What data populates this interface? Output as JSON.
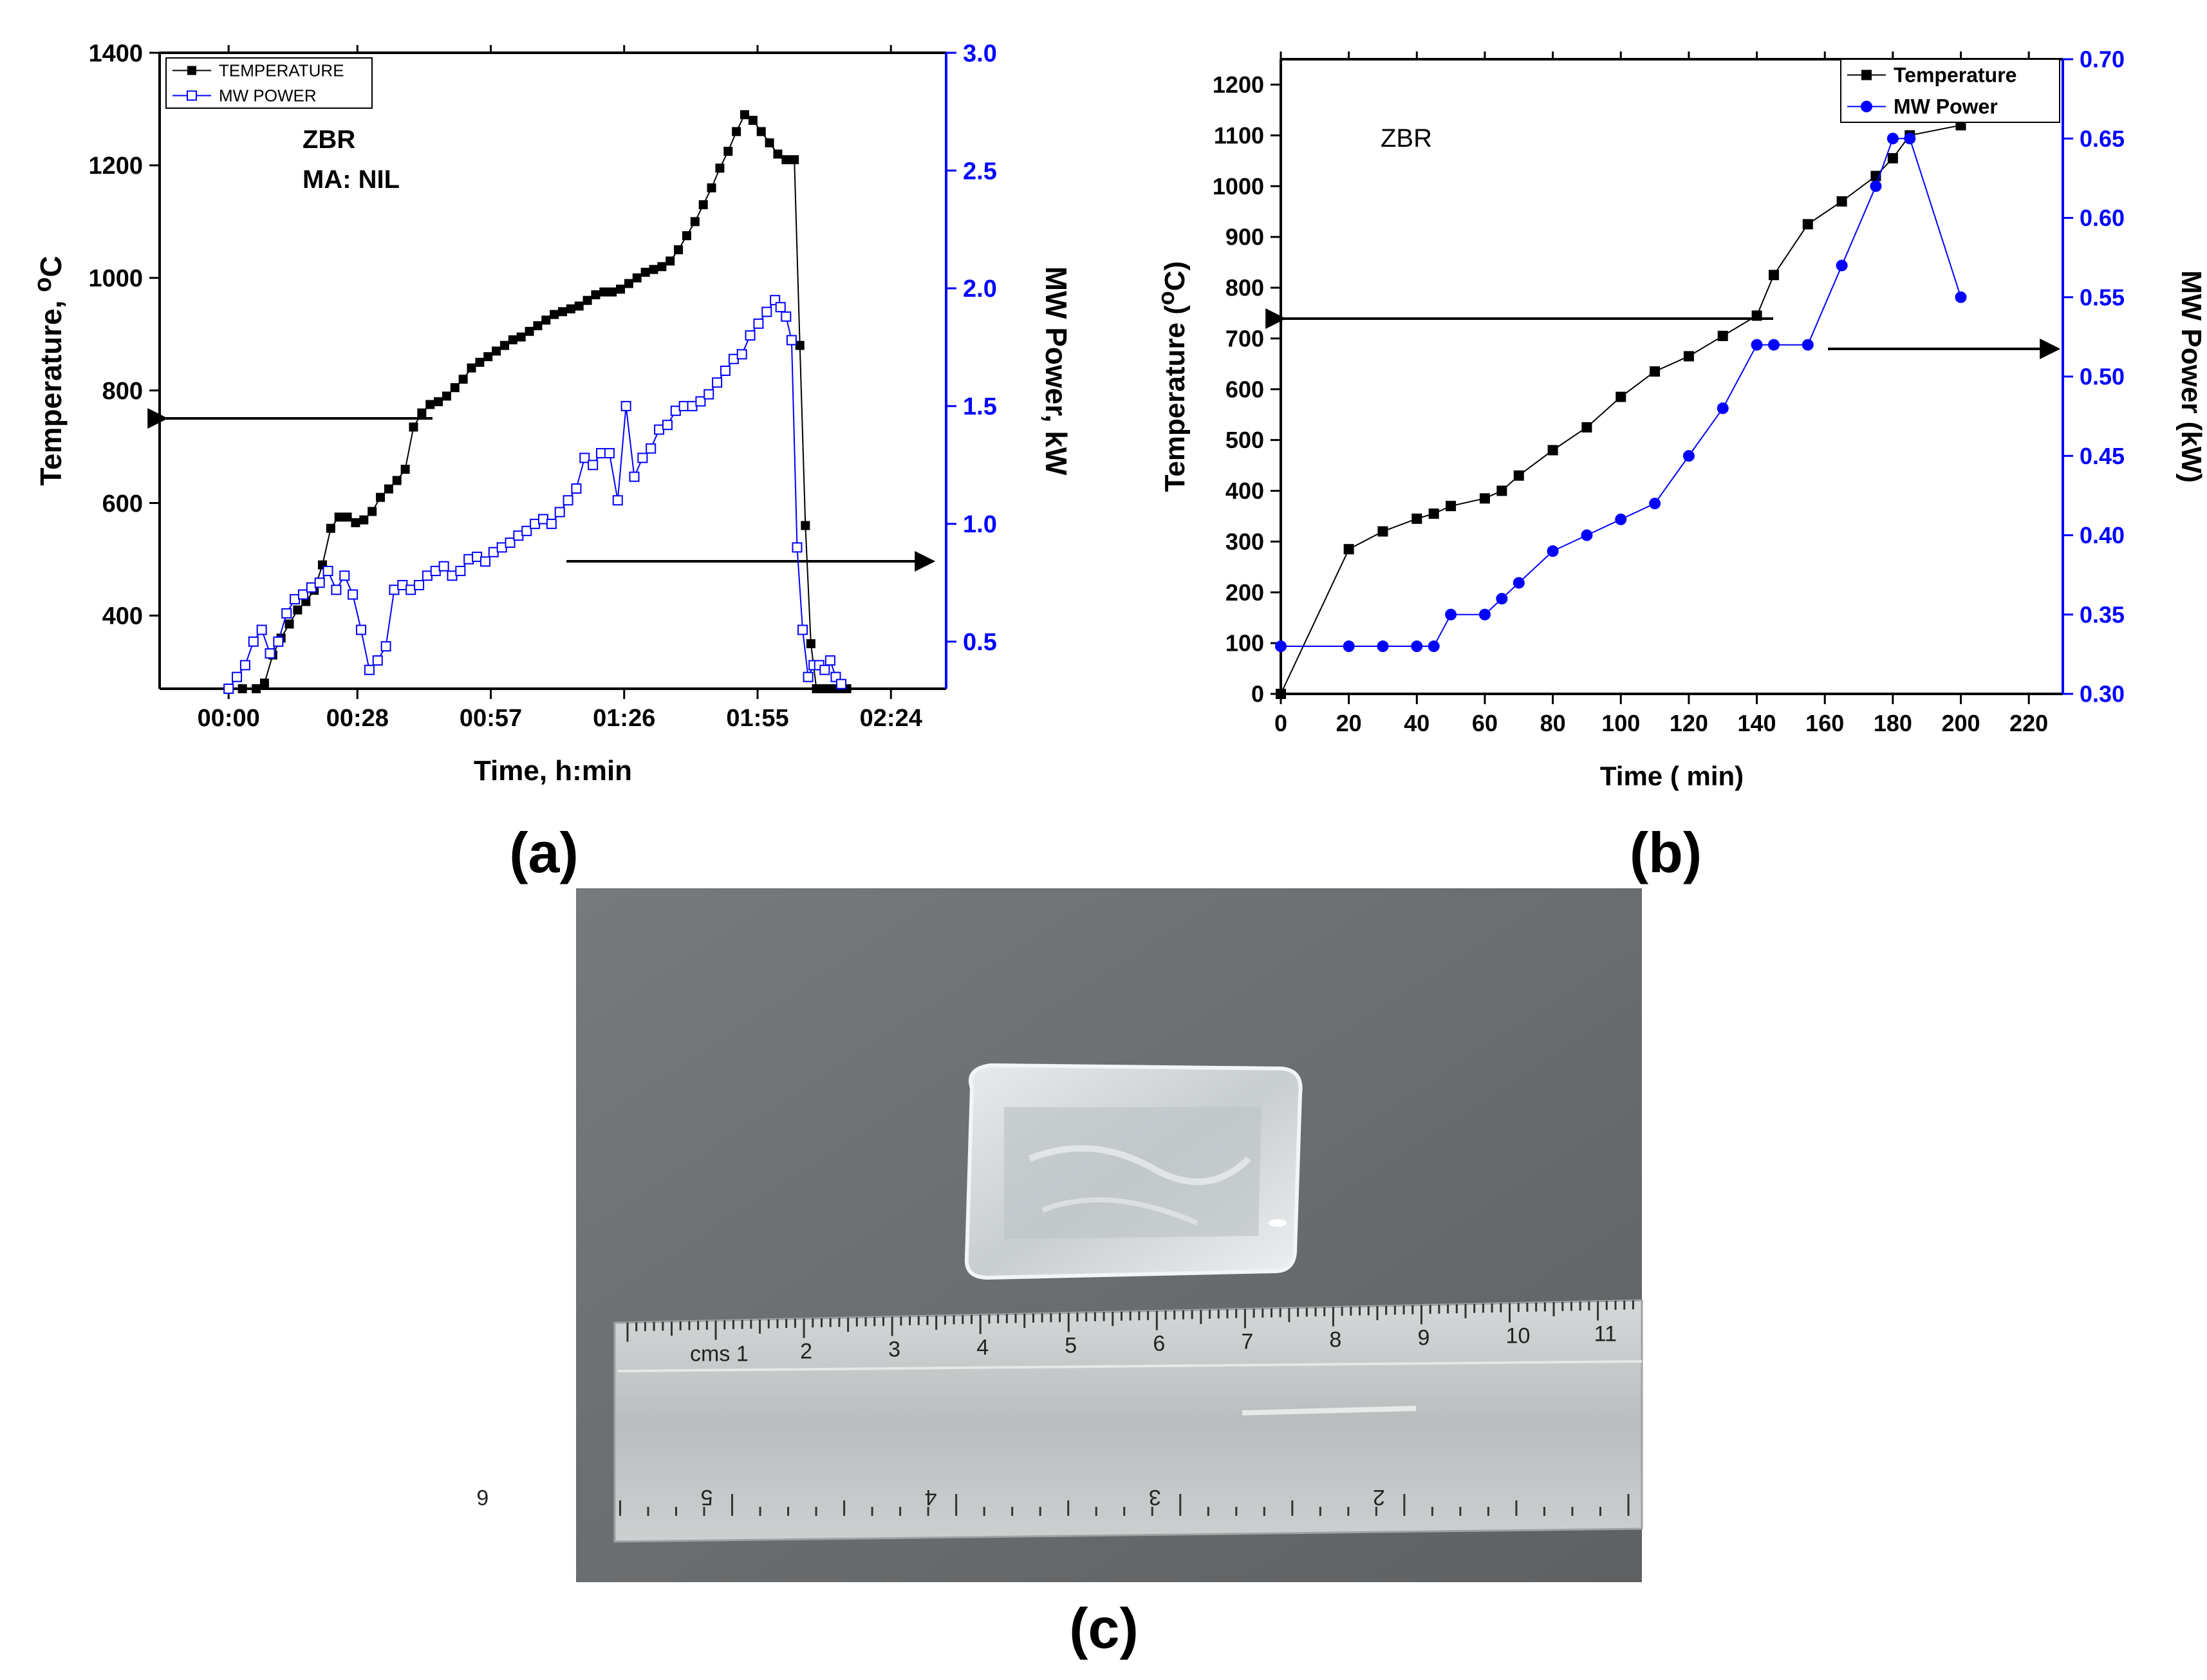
{
  "panels": {
    "a": "(a)",
    "b": "(b)",
    "c": "(c)"
  },
  "colors": {
    "temperature": "#000000",
    "mw_power": "#0000ff",
    "right_axis": "#0000ff",
    "photo_background": "#6e7072",
    "glass": "#d8dcdf",
    "ruler": "#c9cccc"
  },
  "chart_data": [
    {
      "id": "a",
      "type": "line",
      "title": "",
      "annotations": [
        "ZBR",
        "MA: NIL"
      ],
      "xlabel": "Time, h:min",
      "ylabel_left": "Temperature, ",
      "ylabel_left_sup": "o",
      "ylabel_left_unit": "C",
      "ylabel_right": "MW Power, kW",
      "xlim": [
        -0.25,
        2.6
      ],
      "ylim_left": [
        270,
        1400
      ],
      "ylim_right": [
        0.3,
        3.0
      ],
      "x_ticks": [
        0,
        0.4667,
        0.95,
        1.4333,
        1.9167,
        2.4
      ],
      "x_tick_labels": [
        "00:00",
        "00:28",
        "00:57",
        "01:26",
        "01:55",
        "02:24"
      ],
      "y_left_ticks": [
        400,
        600,
        800,
        1000,
        1200,
        1400
      ],
      "y_left_tick_labels": [
        "400",
        "600",
        "800",
        "1000",
        "1200",
        "1400"
      ],
      "y_right_ticks": [
        0.5,
        1.0,
        1.5,
        2.0,
        2.5,
        3.0
      ],
      "y_right_tick_labels": [
        "0.5",
        "1.0",
        "1.5",
        "2.0",
        "2.5",
        "3.0"
      ],
      "legend_position": "top-left",
      "grid": false,
      "series": [
        {
          "name": "TEMPERATURE",
          "axis": "left",
          "marker": "filled-square",
          "x": [
            0.0,
            0.05,
            0.1,
            0.13,
            0.16,
            0.19,
            0.22,
            0.25,
            0.28,
            0.31,
            0.34,
            0.37,
            0.4,
            0.43,
            0.46,
            0.49,
            0.52,
            0.55,
            0.58,
            0.61,
            0.64,
            0.67,
            0.7,
            0.73,
            0.76,
            0.79,
            0.82,
            0.85,
            0.88,
            0.91,
            0.94,
            0.97,
            1.0,
            1.03,
            1.06,
            1.09,
            1.12,
            1.15,
            1.18,
            1.21,
            1.24,
            1.27,
            1.3,
            1.33,
            1.36,
            1.39,
            1.42,
            1.45,
            1.48,
            1.51,
            1.54,
            1.57,
            1.6,
            1.63,
            1.66,
            1.69,
            1.72,
            1.75,
            1.78,
            1.81,
            1.84,
            1.87,
            1.9,
            1.93,
            1.96,
            1.99,
            2.02,
            2.05,
            2.07,
            2.09,
            2.11,
            2.13,
            2.15,
            2.17,
            2.19,
            2.21,
            2.23,
            2.24
          ],
          "y": [
            270,
            270,
            270,
            280,
            330,
            360,
            385,
            410,
            425,
            445,
            490,
            555,
            575,
            575,
            565,
            570,
            585,
            610,
            625,
            640,
            660,
            735,
            760,
            775,
            780,
            790,
            805,
            820,
            840,
            850,
            860,
            870,
            880,
            890,
            895,
            905,
            915,
            925,
            935,
            940,
            945,
            950,
            960,
            970,
            975,
            975,
            980,
            990,
            1000,
            1010,
            1015,
            1020,
            1030,
            1050,
            1075,
            1100,
            1130,
            1160,
            1195,
            1225,
            1260,
            1290,
            1280,
            1260,
            1240,
            1220,
            1210,
            1210,
            880,
            560,
            350,
            270,
            270,
            270,
            270,
            270,
            270,
            270
          ]
        },
        {
          "name": "MW POWER",
          "axis": "right",
          "marker": "open-square",
          "x": [
            0.0,
            0.03,
            0.06,
            0.09,
            0.12,
            0.15,
            0.18,
            0.21,
            0.24,
            0.27,
            0.3,
            0.33,
            0.36,
            0.39,
            0.42,
            0.45,
            0.48,
            0.51,
            0.54,
            0.57,
            0.6,
            0.63,
            0.66,
            0.69,
            0.72,
            0.75,
            0.78,
            0.81,
            0.84,
            0.87,
            0.9,
            0.93,
            0.96,
            0.99,
            1.02,
            1.05,
            1.08,
            1.11,
            1.14,
            1.17,
            1.2,
            1.23,
            1.26,
            1.29,
            1.32,
            1.35,
            1.38,
            1.41,
            1.44,
            1.47,
            1.5,
            1.53,
            1.56,
            1.59,
            1.62,
            1.65,
            1.68,
            1.71,
            1.74,
            1.77,
            1.8,
            1.83,
            1.86,
            1.89,
            1.92,
            1.95,
            1.98,
            2.0,
            2.02,
            2.04,
            2.06,
            2.08,
            2.1,
            2.12,
            2.14,
            2.16,
            2.18,
            2.2,
            2.22
          ],
          "y": [
            0.3,
            0.35,
            0.4,
            0.5,
            0.55,
            0.45,
            0.5,
            0.62,
            0.68,
            0.7,
            0.73,
            0.75,
            0.8,
            0.72,
            0.78,
            0.7,
            0.55,
            0.38,
            0.42,
            0.48,
            0.72,
            0.74,
            0.72,
            0.74,
            0.78,
            0.8,
            0.82,
            0.78,
            0.8,
            0.85,
            0.86,
            0.84,
            0.88,
            0.9,
            0.92,
            0.95,
            0.97,
            1.0,
            1.02,
            1.0,
            1.05,
            1.1,
            1.15,
            1.28,
            1.25,
            1.3,
            1.3,
            1.1,
            1.5,
            1.2,
            1.28,
            1.32,
            1.4,
            1.42,
            1.48,
            1.5,
            1.5,
            1.52,
            1.55,
            1.6,
            1.65,
            1.7,
            1.72,
            1.8,
            1.85,
            1.9,
            1.95,
            1.92,
            1.88,
            1.78,
            0.9,
            0.55,
            0.35,
            0.4,
            0.4,
            0.38,
            0.42,
            0.35,
            0.32
          ]
        }
      ]
    },
    {
      "id": "b",
      "type": "line",
      "title": "",
      "annotations": [
        "ZBR"
      ],
      "xlabel": "Time ( min)",
      "ylabel_left": "Temperature (",
      "ylabel_left_sup": "o",
      "ylabel_left_unit": "C)",
      "ylabel_right": "MW Power (kW)",
      "xlim": [
        0,
        230
      ],
      "ylim_left": [
        0,
        1250
      ],
      "ylim_right": [
        0.3,
        0.7
      ],
      "x_ticks": [
        0,
        20,
        40,
        60,
        80,
        100,
        120,
        140,
        160,
        180,
        200,
        220
      ],
      "x_tick_labels": [
        "0",
        "20",
        "40",
        "60",
        "80",
        "100",
        "120",
        "140",
        "160",
        "180",
        "200",
        "220"
      ],
      "y_left_ticks": [
        0,
        100,
        200,
        300,
        400,
        500,
        600,
        700,
        800,
        900,
        1000,
        1100,
        1200
      ],
      "y_left_tick_labels": [
        "0",
        "100",
        "200",
        "300",
        "400",
        "500",
        "600",
        "700",
        "800",
        "900",
        "1000",
        "1100",
        "1200"
      ],
      "y_right_ticks": [
        0.3,
        0.35,
        0.4,
        0.45,
        0.5,
        0.55,
        0.6,
        0.65,
        0.7
      ],
      "y_right_tick_labels": [
        "0.30",
        "0.35",
        "0.40",
        "0.45",
        "0.50",
        "0.55",
        "0.60",
        "0.65",
        "0.70"
      ],
      "legend_position": "top-right",
      "grid": false,
      "series": [
        {
          "name": "Temperature",
          "axis": "left",
          "marker": "filled-square",
          "x": [
            0,
            20,
            30,
            40,
            45,
            50,
            60,
            65,
            70,
            80,
            90,
            100,
            110,
            120,
            130,
            140,
            145,
            155,
            165,
            175,
            180,
            185,
            200
          ],
          "y": [
            0,
            285,
            320,
            345,
            355,
            370,
            385,
            400,
            430,
            480,
            525,
            585,
            635,
            665,
            705,
            745,
            825,
            925,
            970,
            1020,
            1055,
            1100,
            1120
          ]
        },
        {
          "name": "MW Power",
          "axis": "right",
          "marker": "filled-circle",
          "x": [
            0,
            20,
            30,
            40,
            45,
            50,
            60,
            65,
            70,
            80,
            90,
            100,
            110,
            120,
            130,
            140,
            145,
            155,
            165,
            175,
            180,
            185,
            200
          ],
          "y": [
            0.33,
            0.33,
            0.33,
            0.33,
            0.33,
            0.35,
            0.35,
            0.36,
            0.37,
            0.39,
            0.4,
            0.41,
            0.42,
            0.45,
            0.48,
            0.52,
            0.52,
            0.52,
            0.57,
            0.62,
            0.65,
            0.65,
            0.55
          ]
        }
      ]
    }
  ],
  "photo": {
    "ruler_cm_labels": [
      "cms 1",
      "2",
      "3",
      "4",
      "5",
      "6",
      "7",
      "8",
      "9",
      "10",
      "11"
    ],
    "ruler_inch_labels": [
      "6",
      "5",
      "4",
      "3",
      "2"
    ]
  }
}
